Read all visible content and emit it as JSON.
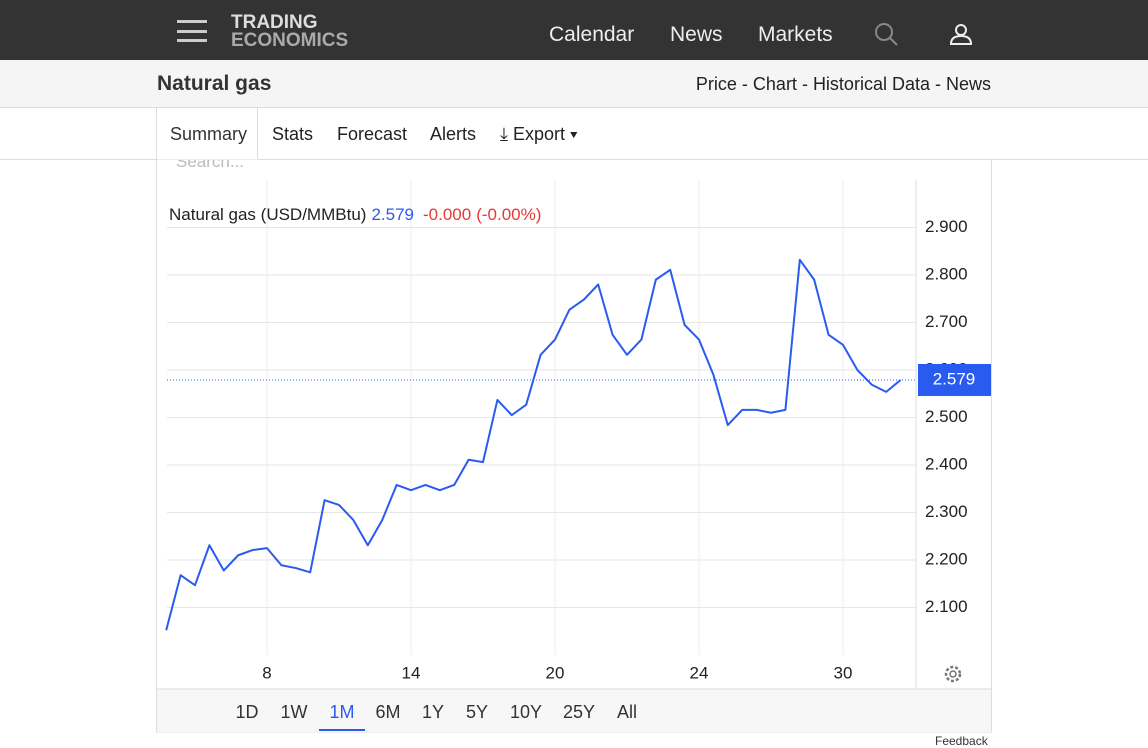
{
  "nav": {
    "logo_top": "TRADING",
    "logo_bottom": "ECONOMICS",
    "links": [
      "Calendar",
      "News",
      "Markets"
    ]
  },
  "header": {
    "title": "Natural gas",
    "links": [
      "Price",
      "Chart",
      "Historical Data",
      "News"
    ]
  },
  "tabs": [
    "Summary",
    "Stats",
    "Forecast",
    "Alerts",
    "Export"
  ],
  "search_placeholder": "Search...",
  "chart_data": {
    "type": "line",
    "title": "Natural gas (USD/MMBtu)",
    "last_value": 2.579,
    "change": "-0.000",
    "change_pct": "(-0.00%)",
    "color": "#2a5bf0",
    "grid": true,
    "categories": [
      null,
      null,
      null,
      null,
      null,
      null,
      null,
      "8",
      null,
      null,
      null,
      null,
      null,
      null,
      null,
      null,
      null,
      "14",
      null,
      null,
      null,
      null,
      null,
      null,
      null,
      null,
      null,
      "20",
      null,
      null,
      null,
      null,
      null,
      null,
      null,
      null,
      null,
      "24",
      null,
      null,
      null,
      null,
      null,
      null,
      null,
      null,
      null,
      "30",
      null,
      null,
      null,
      null
    ],
    "series": [
      {
        "name": "Natural gas",
        "color": "#2a5bf0",
        "values": [
          2.052,
          2.168,
          2.147,
          2.231,
          2.178,
          2.21,
          2.221,
          2.225,
          2.189,
          2.183,
          2.174,
          2.326,
          2.316,
          2.284,
          2.231,
          2.284,
          2.358,
          2.347,
          2.358,
          2.347,
          2.358,
          2.411,
          2.406,
          2.537,
          2.505,
          2.527,
          2.632,
          2.664,
          2.727,
          2.748,
          2.78,
          2.674,
          2.632,
          2.664,
          2.79,
          2.811,
          2.695,
          2.664,
          2.59,
          2.484,
          2.516,
          2.516,
          2.51,
          2.516,
          2.832,
          2.79,
          2.674,
          2.653,
          2.6,
          2.569,
          2.554,
          2.579
        ]
      }
    ],
    "ylim": [
      2.0,
      3.0
    ],
    "yticks": [
      {
        "value": 2.1,
        "label": "2.100"
      },
      {
        "value": 2.2,
        "label": "2.200"
      },
      {
        "value": 2.3,
        "label": "2.300"
      },
      {
        "value": 2.4,
        "label": "2.400"
      },
      {
        "value": 2.5,
        "label": "2.500"
      },
      {
        "value": 2.6,
        "label": "2.600"
      },
      {
        "value": 2.7,
        "label": "2.700"
      },
      {
        "value": 2.8,
        "label": "2.800"
      },
      {
        "value": 2.9,
        "label": "2.900"
      }
    ]
  },
  "ranges": {
    "items": [
      "1D",
      "1W",
      "1M",
      "6M",
      "1Y",
      "5Y",
      "10Y",
      "25Y",
      "All"
    ],
    "active": "1M"
  },
  "feedback": "Feedback"
}
